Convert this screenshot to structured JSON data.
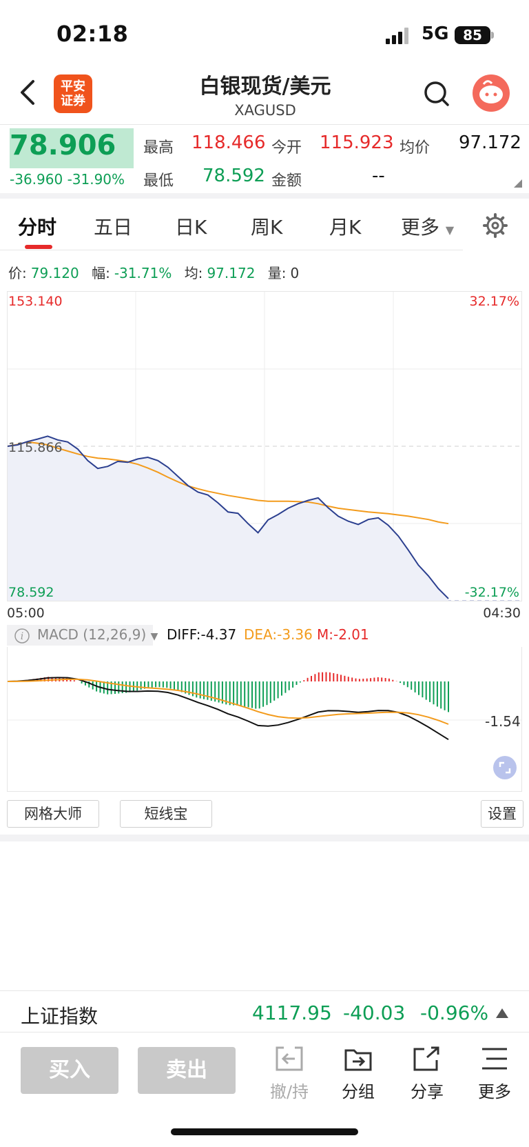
{
  "status": {
    "time": "02:18",
    "network": "5G",
    "battery": "85"
  },
  "header": {
    "logo_text_1": "平安",
    "logo_text_2": "证券",
    "title": "白银现货/美元",
    "symbol": "XAGUSD"
  },
  "quote": {
    "price": "78.906",
    "change": "-36.960",
    "change_pct": "-31.90%",
    "high_label": "最高",
    "high": "118.466",
    "open_label": "今开",
    "open": "115.923",
    "avg_label": "均价",
    "avg": "97.172",
    "low_label": "最低",
    "low": "78.592",
    "amount_label": "金额",
    "amount": "--"
  },
  "tabs": [
    {
      "label": "分时"
    },
    {
      "label": "五日"
    },
    {
      "label": "日K"
    },
    {
      "label": "周K"
    },
    {
      "label": "月K"
    },
    {
      "label": "更多"
    }
  ],
  "info": {
    "price_label": "价:",
    "price": "79.120",
    "amp_label": "幅:",
    "amp": "-31.71%",
    "avg_label": "均:",
    "avg": "97.172",
    "vol_label": "量:",
    "vol": "0"
  },
  "chart_data": {
    "type": "line",
    "y_top_label": "153.140",
    "y_mid_label": "115.866",
    "y_bottom_label": "78.592",
    "pct_top_label": "32.17%",
    "pct_bottom_label": "-32.17%",
    "x_start_label": "05:00",
    "x_end_label": "04:30",
    "ylim": [
      78.592,
      153.14
    ],
    "series": [
      {
        "values": [
          115.87,
          116.2,
          117.0,
          117.6,
          118.3,
          117.4,
          116.9,
          115.2,
          112.4,
          110.5,
          111.0,
          112.2,
          112.0,
          112.8,
          113.2,
          112.4,
          110.8,
          108.6,
          106.4,
          104.8,
          104.1,
          102.2,
          100.0,
          99.7,
          97.2,
          95.0,
          98.1,
          99.4,
          100.9,
          102.0,
          102.8,
          103.4,
          101.0,
          99.0,
          97.8,
          97.0,
          98.2,
          98.6,
          96.8,
          94.2,
          90.8,
          87.2,
          84.6,
          81.5,
          79.1
        ]
      },
      {
        "values": [
          115.87,
          116.3,
          116.9,
          116.6,
          116.2,
          115.4,
          114.7,
          114.0,
          113.4,
          113.0,
          112.8,
          112.5,
          112.1,
          111.5,
          110.6,
          109.6,
          108.4,
          107.3,
          106.3,
          105.6,
          105.0,
          104.5,
          104.0,
          103.6,
          103.2,
          102.8,
          102.6,
          102.6,
          102.6,
          102.5,
          102.4,
          102.0,
          101.4,
          100.9,
          100.6,
          100.3,
          100.0,
          99.8,
          99.6,
          99.3,
          99.0,
          98.6,
          98.2,
          97.6,
          97.2
        ]
      }
    ]
  },
  "macd": {
    "label": "MACD (12,26,9)",
    "diff": "DIFF:-4.37",
    "dea": "DEA:-3.36",
    "m": "M:-2.01",
    "right_label": "-1.54"
  },
  "tools": {
    "grid_master": "网格大师",
    "short_line": "短线宝",
    "settings": "设置"
  },
  "index": {
    "name": "上证指数",
    "value": "4117.95",
    "change": "-40.03",
    "pct": "-0.96%"
  },
  "bottom_nav": {
    "buy": "买入",
    "sell": "卖出",
    "cancel": "撤/持",
    "group": "分组",
    "share": "分享",
    "more": "更多"
  },
  "colors": {
    "up": "#e62a2a",
    "down": "#0d9e55",
    "price_line": "#2b3f8f",
    "avg_line": "#f39b1c"
  }
}
